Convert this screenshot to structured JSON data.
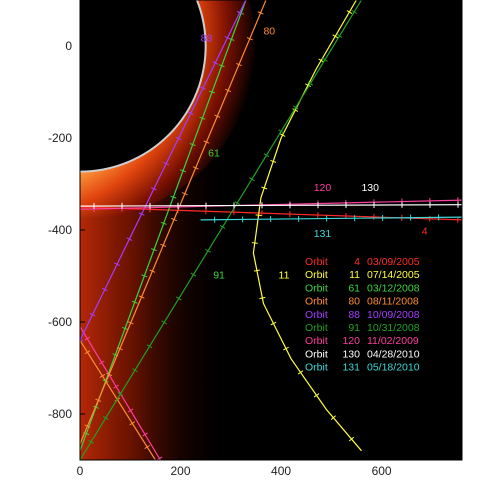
{
  "chart_data": {
    "type": "line",
    "title": "",
    "xlabel": "",
    "ylabel": "",
    "xlim": [
      0,
      760
    ],
    "ylim": [
      -900,
      100
    ],
    "xticks": [
      0,
      200,
      400,
      600
    ],
    "yticks": [
      0,
      -200,
      -400,
      -600,
      -800
    ],
    "grid": false,
    "legend_position": "bottom-right inside plot",
    "background": {
      "planet_circle": {
        "center": [
          0,
          0
        ],
        "radius": 250,
        "edge_color": "#cfcfcf"
      },
      "glow_colors": [
        "#ffffff",
        "#ffe6b0",
        "#ff9a3c",
        "#e0440e",
        "#7a1000",
        "#000000"
      ]
    },
    "series": [
      {
        "name": "Orbit 4",
        "date": "03/09/2005",
        "color": "#ff2a2a",
        "points": [
          [
            0,
            -350
          ],
          [
            760,
            -378
          ]
        ]
      },
      {
        "name": "Orbit 11",
        "date": "07/14/2005",
        "color": "#ffff3a",
        "points": [
          [
            550,
            100
          ],
          [
            470,
            -50
          ],
          [
            400,
            -200
          ],
          [
            360,
            -330
          ],
          [
            345,
            -450
          ],
          [
            365,
            -560
          ],
          [
            420,
            -680
          ],
          [
            490,
            -790
          ],
          [
            560,
            -880
          ]
        ]
      },
      {
        "name": "Orbit 61",
        "date": "03/12/2008",
        "color": "#3cd43c",
        "points": [
          [
            330,
            100
          ],
          [
            0,
            -880
          ]
        ]
      },
      {
        "name": "Orbit 80",
        "date": "08/11/2008",
        "color": "#ff8c32",
        "points": [
          [
            370,
            100
          ],
          [
            0,
            -865
          ]
        ]
      },
      {
        "name": "Orbit 88",
        "date": "10/09/2008",
        "color": "#a43cff",
        "points": [
          [
            330,
            100
          ],
          [
            0,
            -640
          ]
        ]
      },
      {
        "name": "Orbit 91",
        "date": "10/31/2008",
        "color": "#1fa01f",
        "points": [
          [
            560,
            100
          ],
          [
            0,
            -900
          ]
        ]
      },
      {
        "name": "Orbit 120",
        "date": "11/02/2009",
        "color": "#ff3ca0",
        "points": [
          [
            0,
            -355
          ],
          [
            760,
            -335
          ]
        ]
      },
      {
        "name": "Orbit 130",
        "date": "04/28/2010",
        "color": "#ffffff",
        "points": [
          [
            0,
            -348
          ],
          [
            760,
            -345
          ]
        ]
      },
      {
        "name": "Orbit 131",
        "date": "05/18/2010",
        "color": "#3cd8d8",
        "points": [
          [
            240,
            -378
          ],
          [
            760,
            -372
          ]
        ]
      }
    ],
    "extra_lines": [
      {
        "color": "#ff3ca0",
        "points": [
          [
            0,
            -610
          ],
          [
            160,
            -900
          ]
        ]
      },
      {
        "color": "#ff8c32",
        "points": [
          [
            0,
            -640
          ],
          [
            150,
            -900
          ]
        ]
      }
    ],
    "orbit_labels": [
      {
        "text": "88",
        "x": 240,
        "y": 10,
        "color": "#a43cff"
      },
      {
        "text": "80",
        "x": 365,
        "y": 25,
        "color": "#ff8c32"
      },
      {
        "text": "61",
        "x": 255,
        "y": -240,
        "color": "#3cd43c"
      },
      {
        "text": "120",
        "x": 465,
        "y": -315,
        "color": "#ff3ca0"
      },
      {
        "text": "130",
        "x": 560,
        "y": -315,
        "color": "#ffffff"
      },
      {
        "text": "131",
        "x": 465,
        "y": -415,
        "color": "#3cd8d8"
      },
      {
        "text": "4",
        "x": 680,
        "y": -410,
        "color": "#ff2a2a"
      },
      {
        "text": "91",
        "x": 265,
        "y": -505,
        "color": "#3cd43c"
      },
      {
        "text": "11",
        "x": 395,
        "y": -505,
        "color": "#ffff3a"
      }
    ]
  }
}
